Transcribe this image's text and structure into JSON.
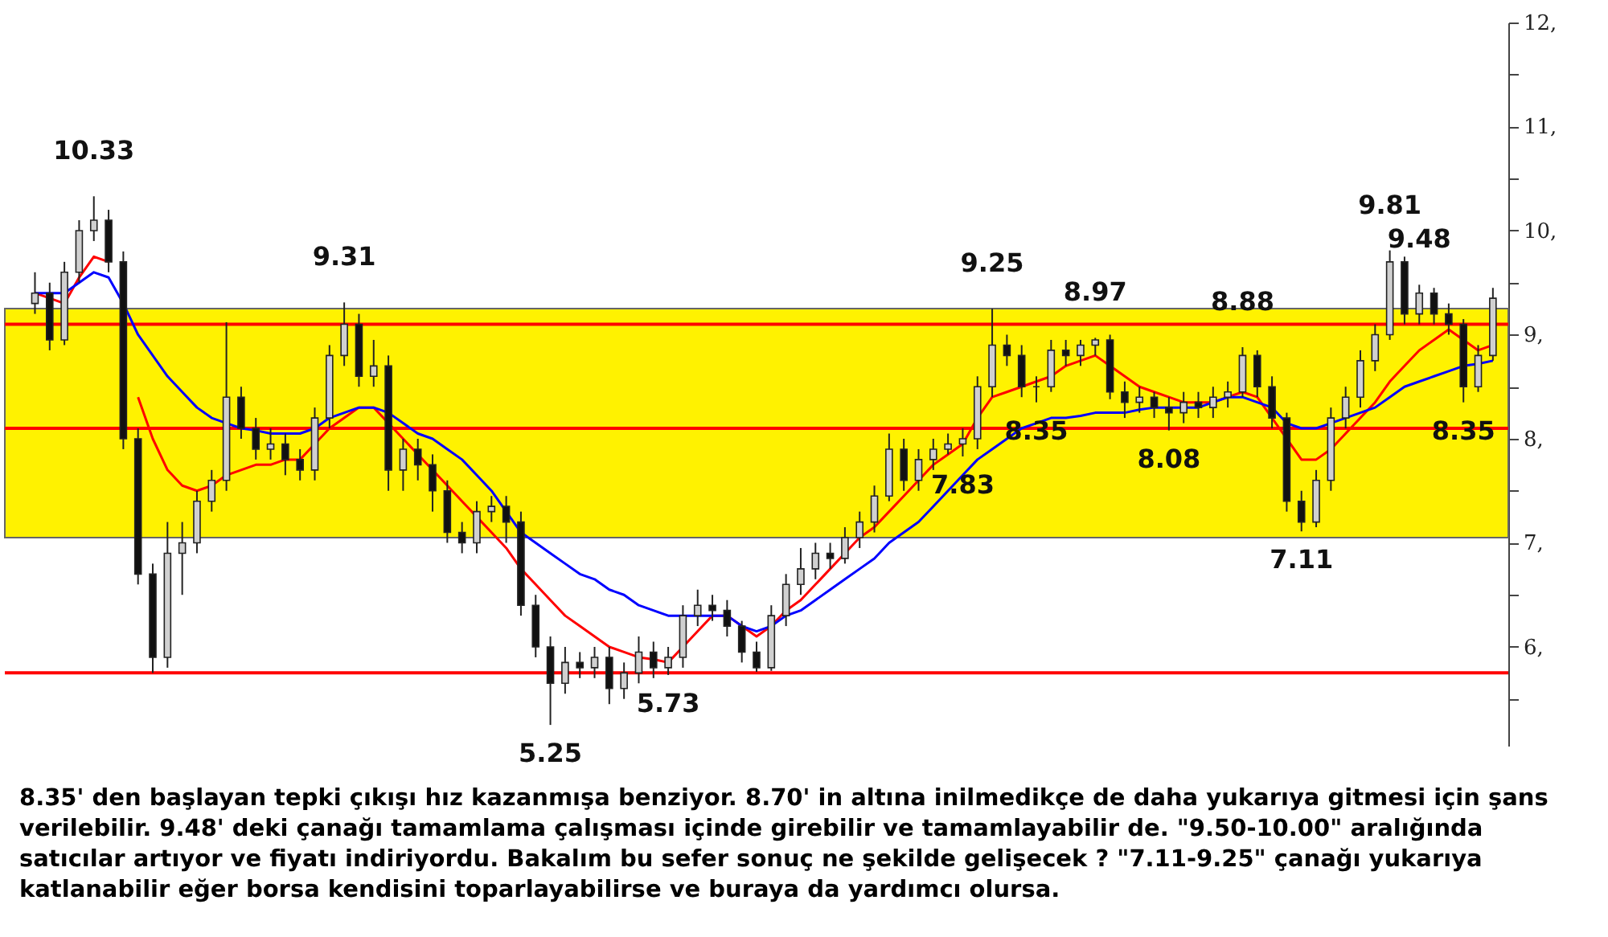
{
  "chart_data": {
    "type": "candlestick",
    "categories": [
      null,
      null,
      null,
      null,
      null,
      null,
      null,
      null,
      null,
      null,
      null,
      null,
      null,
      null,
      null,
      null,
      null,
      null,
      null,
      null,
      null,
      null,
      null,
      null,
      null,
      null,
      null,
      null,
      null,
      null,
      null,
      null,
      null,
      null,
      null,
      null,
      null,
      null,
      null,
      null,
      null,
      null,
      null,
      null,
      null,
      null,
      null,
      null,
      null,
      null,
      null,
      null,
      null,
      null,
      null,
      null,
      null,
      null,
      null,
      null,
      null,
      null,
      null,
      null,
      null,
      null,
      null,
      null,
      null,
      null,
      null,
      null,
      null,
      null,
      null,
      null,
      null,
      null,
      null,
      null,
      null,
      null,
      null,
      null,
      null,
      null,
      null,
      null,
      null,
      null,
      null,
      null,
      null,
      null,
      null,
      null,
      null,
      null,
      null,
      null
    ],
    "ohlc": [
      [
        9.3,
        9.6,
        9.2,
        9.4
      ],
      [
        9.4,
        9.5,
        8.85,
        8.95
      ],
      [
        8.95,
        9.7,
        8.9,
        9.6
      ],
      [
        9.6,
        10.1,
        9.5,
        10.0
      ],
      [
        10.0,
        10.33,
        9.9,
        10.1
      ],
      [
        10.1,
        10.2,
        9.6,
        9.7
      ],
      [
        9.7,
        9.8,
        7.9,
        8.0
      ],
      [
        8.0,
        8.1,
        6.6,
        6.7
      ],
      [
        6.7,
        6.8,
        5.75,
        5.9
      ],
      [
        5.9,
        7.2,
        5.8,
        6.9
      ],
      [
        6.9,
        7.2,
        6.5,
        7.0
      ],
      [
        7.0,
        7.5,
        6.9,
        7.4
      ],
      [
        7.4,
        7.7,
        7.3,
        7.6
      ],
      [
        7.6,
        9.12,
        7.5,
        8.4
      ],
      [
        8.4,
        8.5,
        8.0,
        8.1
      ],
      [
        8.1,
        8.2,
        7.8,
        7.9
      ],
      [
        7.9,
        8.1,
        7.8,
        7.95
      ],
      [
        7.95,
        8.05,
        7.65,
        7.8
      ],
      [
        7.8,
        7.9,
        7.6,
        7.7
      ],
      [
        7.7,
        8.3,
        7.6,
        8.2
      ],
      [
        8.2,
        8.9,
        8.1,
        8.8
      ],
      [
        8.8,
        9.31,
        8.7,
        9.1
      ],
      [
        9.1,
        9.2,
        8.5,
        8.6
      ],
      [
        8.6,
        8.95,
        8.5,
        8.7
      ],
      [
        8.7,
        8.8,
        7.5,
        7.7
      ],
      [
        7.7,
        8.0,
        7.5,
        7.9
      ],
      [
        7.9,
        8.0,
        7.6,
        7.75
      ],
      [
        7.75,
        7.85,
        7.3,
        7.5
      ],
      [
        7.5,
        7.6,
        7.0,
        7.1
      ],
      [
        7.1,
        7.2,
        6.9,
        7.0
      ],
      [
        7.0,
        7.4,
        6.9,
        7.3
      ],
      [
        7.3,
        7.45,
        7.2,
        7.35
      ],
      [
        7.35,
        7.45,
        7.0,
        7.2
      ],
      [
        7.2,
        7.3,
        6.3,
        6.4
      ],
      [
        6.4,
        6.5,
        5.9,
        6.0
      ],
      [
        6.0,
        6.1,
        5.25,
        5.65
      ],
      [
        5.65,
        6.0,
        5.55,
        5.85
      ],
      [
        5.85,
        5.95,
        5.7,
        5.8
      ],
      [
        5.8,
        6.0,
        5.7,
        5.9
      ],
      [
        5.9,
        6.0,
        5.45,
        5.6
      ],
      [
        5.6,
        5.85,
        5.5,
        5.75
      ],
      [
        5.75,
        6.1,
        5.65,
        5.95
      ],
      [
        5.95,
        6.05,
        5.7,
        5.8
      ],
      [
        5.8,
        6.0,
        5.73,
        5.9
      ],
      [
        5.9,
        6.4,
        5.8,
        6.3
      ],
      [
        6.3,
        6.55,
        6.2,
        6.4
      ],
      [
        6.4,
        6.5,
        6.25,
        6.35
      ],
      [
        6.35,
        6.45,
        6.1,
        6.2
      ],
      [
        6.2,
        6.25,
        5.85,
        5.95
      ],
      [
        5.95,
        6.05,
        5.76,
        5.8
      ],
      [
        5.8,
        6.4,
        5.77,
        6.3
      ],
      [
        6.3,
        6.7,
        6.2,
        6.6
      ],
      [
        6.6,
        6.95,
        6.5,
        6.75
      ],
      [
        6.75,
        7.0,
        6.65,
        6.9
      ],
      [
        6.9,
        7.0,
        6.75,
        6.85
      ],
      [
        6.85,
        7.15,
        6.8,
        7.05
      ],
      [
        7.05,
        7.3,
        6.95,
        7.2
      ],
      [
        7.2,
        7.55,
        7.1,
        7.45
      ],
      [
        7.45,
        8.05,
        7.4,
        7.9
      ],
      [
        7.9,
        8.0,
        7.5,
        7.6
      ],
      [
        7.6,
        7.9,
        7.5,
        7.8
      ],
      [
        7.8,
        8.0,
        7.7,
        7.9
      ],
      [
        7.9,
        8.05,
        7.85,
        7.95
      ],
      [
        7.95,
        8.1,
        7.83,
        8.0
      ],
      [
        8.0,
        8.6,
        7.9,
        8.5
      ],
      [
        8.5,
        9.25,
        8.4,
        8.9
      ],
      [
        8.9,
        9.0,
        8.7,
        8.8
      ],
      [
        8.8,
        8.9,
        8.4,
        8.5
      ],
      [
        8.5,
        8.6,
        8.35,
        8.5
      ],
      [
        8.5,
        8.95,
        8.45,
        8.85
      ],
      [
        8.85,
        8.95,
        8.7,
        8.8
      ],
      [
        8.8,
        8.95,
        8.7,
        8.9
      ],
      [
        8.9,
        8.97,
        8.8,
        8.95
      ],
      [
        8.95,
        9.0,
        8.38,
        8.45
      ],
      [
        8.45,
        8.55,
        8.2,
        8.35
      ],
      [
        8.35,
        8.5,
        8.25,
        8.4
      ],
      [
        8.4,
        8.45,
        8.2,
        8.3
      ],
      [
        8.3,
        8.4,
        8.08,
        8.25
      ],
      [
        8.25,
        8.45,
        8.15,
        8.35
      ],
      [
        8.35,
        8.45,
        8.2,
        8.3
      ],
      [
        8.3,
        8.5,
        8.2,
        8.4
      ],
      [
        8.4,
        8.55,
        8.3,
        8.45
      ],
      [
        8.45,
        8.88,
        8.4,
        8.8
      ],
      [
        8.8,
        8.85,
        8.4,
        8.5
      ],
      [
        8.5,
        8.6,
        8.1,
        8.2
      ],
      [
        8.2,
        8.25,
        7.3,
        7.4
      ],
      [
        7.4,
        7.5,
        7.11,
        7.2
      ],
      [
        7.2,
        7.7,
        7.15,
        7.6
      ],
      [
        7.6,
        8.3,
        7.5,
        8.2
      ],
      [
        8.2,
        8.5,
        8.1,
        8.4
      ],
      [
        8.4,
        8.85,
        8.3,
        8.75
      ],
      [
        8.75,
        9.1,
        8.65,
        9.0
      ],
      [
        9.0,
        9.81,
        8.95,
        9.7
      ],
      [
        9.7,
        9.75,
        9.1,
        9.2
      ],
      [
        9.2,
        9.48,
        9.1,
        9.4
      ],
      [
        9.4,
        9.45,
        9.1,
        9.2
      ],
      [
        9.2,
        9.3,
        9.0,
        9.1
      ],
      [
        9.1,
        9.15,
        8.35,
        8.5
      ],
      [
        8.5,
        8.9,
        8.45,
        8.8
      ],
      [
        8.8,
        9.45,
        8.75,
        9.35
      ]
    ],
    "series": [
      {
        "type": "line",
        "color": "#ff0000",
        "values": [
          9.4,
          9.35,
          9.3,
          9.55,
          9.75,
          9.7,
          null,
          8.4,
          8.0,
          7.7,
          7.55,
          7.5,
          7.55,
          7.65,
          7.7,
          7.75,
          7.75,
          7.8,
          7.8,
          7.95,
          8.1,
          8.2,
          8.3,
          8.3,
          8.15,
          8.0,
          7.85,
          7.7,
          7.55,
          7.4,
          7.25,
          7.1,
          6.95,
          6.75,
          6.6,
          6.45,
          6.3,
          6.2,
          6.1,
          6.0,
          5.95,
          5.9,
          5.88,
          5.85,
          6.0,
          6.15,
          6.3,
          6.3,
          6.2,
          6.1,
          6.2,
          6.35,
          6.45,
          6.6,
          6.75,
          6.9,
          7.05,
          7.15,
          7.3,
          7.45,
          7.6,
          7.75,
          7.85,
          7.95,
          8.2,
          8.4,
          8.45,
          8.5,
          8.55,
          8.6,
          8.7,
          8.75,
          8.8,
          8.7,
          8.6,
          8.5,
          8.45,
          8.4,
          8.35,
          8.35,
          8.35,
          8.4,
          8.45,
          8.4,
          8.2,
          8.0,
          7.8,
          7.8,
          7.9,
          8.05,
          8.2,
          8.35,
          8.55,
          8.7,
          8.85,
          8.95,
          9.05,
          8.95,
          8.85,
          8.9
        ]
      },
      {
        "type": "line",
        "color": "#0000ff",
        "values": [
          9.4,
          9.4,
          9.4,
          9.5,
          9.6,
          9.55,
          9.3,
          9.0,
          8.8,
          8.6,
          8.45,
          8.3,
          8.2,
          8.15,
          8.1,
          8.08,
          8.05,
          8.05,
          8.05,
          8.1,
          8.2,
          8.25,
          8.3,
          8.3,
          8.25,
          8.15,
          8.05,
          8.0,
          7.9,
          7.8,
          7.65,
          7.5,
          7.3,
          7.1,
          7.0,
          6.9,
          6.8,
          6.7,
          6.65,
          6.55,
          6.5,
          6.4,
          6.35,
          6.3,
          6.3,
          6.3,
          6.3,
          6.3,
          6.2,
          6.15,
          6.2,
          6.3,
          6.35,
          6.45,
          6.55,
          6.65,
          6.75,
          6.85,
          7.0,
          7.1,
          7.2,
          7.35,
          7.5,
          7.65,
          7.8,
          7.9,
          8.0,
          8.1,
          8.15,
          8.2,
          8.2,
          8.22,
          8.25,
          8.25,
          8.25,
          8.28,
          8.3,
          8.3,
          8.3,
          8.3,
          8.35,
          8.4,
          8.4,
          8.35,
          8.3,
          8.15,
          8.1,
          8.1,
          8.15,
          8.2,
          8.25,
          8.3,
          8.4,
          8.5,
          8.55,
          8.6,
          8.65,
          8.7,
          8.72,
          8.75
        ]
      }
    ],
    "ylim": [
      5.05,
      12
    ],
    "yticks": [
      {
        "value": 5.5,
        "label": null
      },
      {
        "value": 6,
        "label": "6,"
      },
      {
        "value": 6.5,
        "label": null
      },
      {
        "value": 7,
        "label": "7,"
      },
      {
        "value": 7.5,
        "label": null
      },
      {
        "value": 8,
        "label": "8,"
      },
      {
        "value": 8.5,
        "label": null
      },
      {
        "value": 9,
        "label": "9,"
      },
      {
        "value": 9.5,
        "label": null
      },
      {
        "value": 10,
        "label": "10,"
      },
      {
        "value": 10.5,
        "label": null
      },
      {
        "value": 11,
        "label": "11,"
      },
      {
        "value": 11.5,
        "label": null
      },
      {
        "value": 12,
        "label": "12,"
      }
    ],
    "tick_labels": "y",
    "grid": false,
    "bands": [
      {
        "axis": "y",
        "from": 7.05,
        "to": 9.25,
        "color": "#fff200"
      }
    ],
    "ref_lines": [
      {
        "axis": "y",
        "value": 9.1,
        "color": "#ff0000"
      },
      {
        "axis": "y",
        "value": 5.75,
        "color": "#ff0000"
      },
      {
        "axis": "y",
        "value": 8.1,
        "color": "#ff0000"
      }
    ],
    "annotations": [
      {
        "text": "10.33",
        "y": 10.33
      },
      {
        "text": "9.31",
        "y": 9.31
      },
      {
        "text": "5.25",
        "y": 5.25
      },
      {
        "text": "5.73",
        "y": 5.73
      },
      {
        "text": "7.83",
        "y": 7.83
      },
      {
        "text": "9.25",
        "y": 9.25
      },
      {
        "text": "8.35",
        "y": 8.35
      },
      {
        "text": "8.97",
        "y": 8.97
      },
      {
        "text": "8.08",
        "y": 8.08
      },
      {
        "text": "8.88",
        "y": 8.88
      },
      {
        "text": "7.11",
        "y": 7.11
      },
      {
        "text": "9.81",
        "y": 9.81
      },
      {
        "text": "9.48",
        "y": 9.48
      },
      {
        "text": "8.35",
        "y": 8.35
      },
      "8.35' den başlayan tepki çıkışı hız kazanmışa benziyor. 8.70' in altına inilmedikçe de daha yukarıya gitmesi için şans verilebilir. 9.48' deki çanağı tamamlama çalışması içinde girebilir ve tamamlayabilir de. \"9.50-10.00\" aralığında satıcılar artıyor ve fiyatı indiriyordu. Bakalım bu sefer sonuç ne şekilde gelişecek ? \"7.11-9.25\" çanağı yukarıya katlanabilir eğer borsa kendisini toparlayabilirse ve buraya da yardımcı olursa."
    ]
  }
}
